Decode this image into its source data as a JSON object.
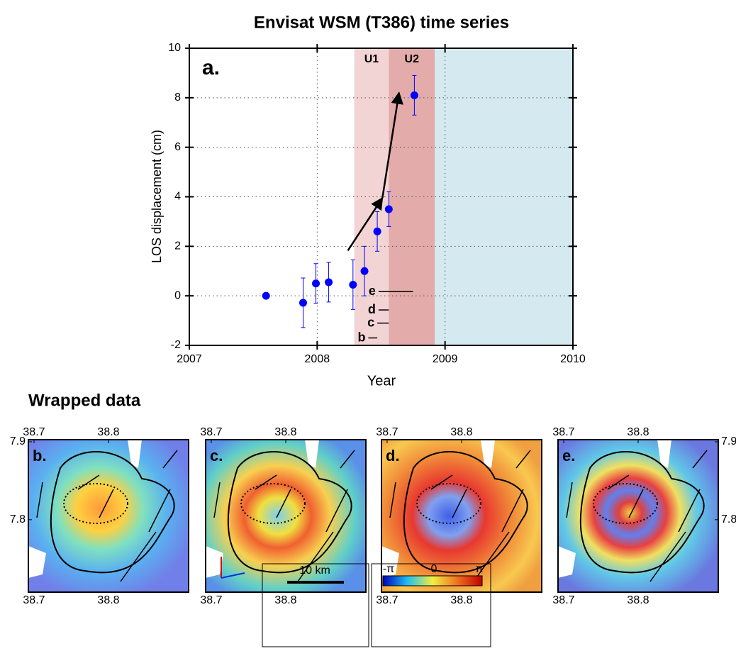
{
  "chart_data": {
    "type": "scatter",
    "title": "Envisat WSM (T386) time series",
    "panel_label": "a.",
    "xlabel": "Year",
    "ylabel": "LOS displacement (cm)",
    "x": [
      2007.6,
      2007.89,
      2007.99,
      2008.09,
      2008.28,
      2008.37,
      2008.47,
      2008.56,
      2008.76
    ],
    "values": [
      0,
      -0.28,
      0.5,
      0.55,
      0.45,
      1.0,
      2.6,
      3.5,
      8.1
    ],
    "errors": [
      0,
      1.0,
      0.8,
      0.8,
      1.0,
      1.0,
      0.8,
      0.7,
      0.8
    ],
    "color": "#0000ff",
    "xlim": [
      2007,
      2010
    ],
    "xticks": [
      2007,
      2008,
      2009,
      2010
    ],
    "ylim": [
      -2,
      10
    ],
    "yticks": [
      -2,
      0,
      2,
      4,
      6,
      8,
      10
    ],
    "grid": true,
    "periods": [
      {
        "label": "U1",
        "start": 2008.29,
        "end": 2008.56,
        "color": "#f3d4d4"
      },
      {
        "label": "U2",
        "start": 2008.56,
        "end": 2008.92,
        "color": "#e4abab"
      },
      {
        "start": 2008.92,
        "end": 2010,
        "color": "#d4e9f0"
      }
    ],
    "intervals": [
      {
        "label": "e",
        "start": 2008.48,
        "end": 2008.75,
        "y": 0.17
      },
      {
        "label": "d",
        "start": 2008.48,
        "end": 2008.56,
        "y": -0.57
      },
      {
        "label": "c",
        "start": 2008.47,
        "end": 2008.56,
        "y": -1.1
      },
      {
        "label": "b",
        "start": 2008.4,
        "end": 2008.47,
        "y": -1.7
      }
    ],
    "arrows": [
      {
        "from": [
          2008.24,
          1.83
        ],
        "to": [
          2008.51,
          3.95
        ]
      },
      {
        "from": [
          2008.51,
          3.95
        ],
        "to": [
          2008.64,
          8.2
        ]
      }
    ]
  },
  "maps": {
    "title": "Wrapped data",
    "xticks": [
      38.7,
      38.8
    ],
    "yticks": [
      7.9,
      7.8
    ],
    "xlim": [
      38.6924,
      38.9076
    ],
    "ylim": [
      7.707,
      7.9027
    ],
    "panels": [
      {
        "label": "b."
      },
      {
        "label": "c."
      },
      {
        "label": "d."
      },
      {
        "label": "e."
      }
    ],
    "scale_bar": "10 km",
    "colorbar": [
      "-π",
      "0",
      "π"
    ]
  }
}
